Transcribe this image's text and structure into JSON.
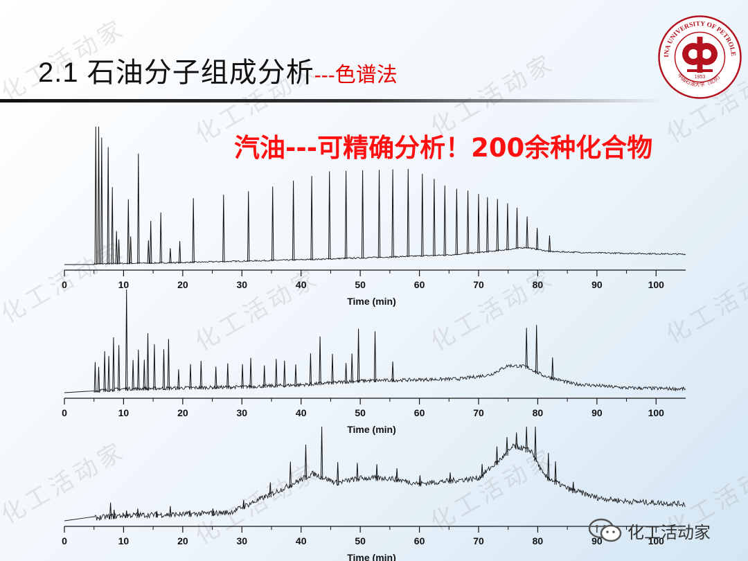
{
  "slide": {
    "title_main": "2.1 石油分子组成分析",
    "title_sub": "---色谱法",
    "headline": "汽油---可精确分析！200余种化合物"
  },
  "logo": {
    "ring_text": "CHINA UNIVERSITY OF PETROLEUM",
    "bottom_text": "中国石油大学（北京）",
    "year": "1953",
    "color": "#b3121e"
  },
  "watermark": "化工活动家",
  "wechat": {
    "label": "化工活动家",
    "icon": "wechat-icon"
  },
  "chart_data": [
    {
      "type": "line",
      "xlabel": "Time (min)",
      "xlim": [
        0,
        105
      ],
      "xticks": [
        0,
        10,
        20,
        30,
        40,
        50,
        60,
        70,
        80,
        90,
        100
      ],
      "baseline": [
        [
          0,
          0
        ],
        [
          5,
          0
        ],
        [
          20,
          1
        ],
        [
          40,
          3
        ],
        [
          55,
          5
        ],
        [
          65,
          6.5
        ],
        [
          72,
          9
        ],
        [
          78,
          12
        ],
        [
          82,
          9
        ],
        [
          90,
          8
        ],
        [
          105,
          7
        ]
      ],
      "peaks": [
        [
          5.3,
          100
        ],
        [
          5.8,
          100
        ],
        [
          6.3,
          92
        ],
        [
          7.4,
          85
        ],
        [
          8.1,
          56
        ],
        [
          8.8,
          24
        ],
        [
          9.2,
          18
        ],
        [
          10.8,
          47
        ],
        [
          11.2,
          20
        ],
        [
          12.5,
          80
        ],
        [
          14.2,
          17
        ],
        [
          14.6,
          31
        ],
        [
          16.3,
          37
        ],
        [
          17.9,
          11
        ],
        [
          19.5,
          16
        ],
        [
          21.8,
          47
        ],
        [
          26.9,
          49
        ],
        [
          31.1,
          51
        ],
        [
          35.2,
          54
        ],
        [
          38.7,
          58
        ],
        [
          41.8,
          61
        ],
        [
          44.8,
          64
        ],
        [
          47.6,
          64
        ],
        [
          50.4,
          64
        ],
        [
          53.2,
          64
        ],
        [
          55.5,
          64
        ],
        [
          58.1,
          64
        ],
        [
          60.5,
          60
        ],
        [
          62.5,
          56
        ],
        [
          64.3,
          51
        ],
        [
          66.3,
          48
        ],
        [
          68.2,
          46
        ],
        [
          70.0,
          43
        ],
        [
          71.5,
          40
        ],
        [
          73.2,
          38
        ],
        [
          74.9,
          34
        ],
        [
          76.5,
          30
        ],
        [
          78.2,
          23
        ],
        [
          79.9,
          16
        ],
        [
          82.0,
          12
        ]
      ],
      "noise": 2
    },
    {
      "type": "line",
      "xlabel": "Time (min)",
      "xlim": [
        0,
        105
      ],
      "xticks": [
        0,
        10,
        20,
        30,
        40,
        50,
        60,
        70,
        80,
        90,
        100
      ],
      "baseline": [
        [
          0,
          0
        ],
        [
          5,
          0
        ],
        [
          10,
          2
        ],
        [
          20,
          3
        ],
        [
          30,
          4
        ],
        [
          40,
          6
        ],
        [
          50,
          10
        ],
        [
          60,
          11
        ],
        [
          67,
          12
        ],
        [
          72,
          16
        ],
        [
          75,
          25
        ],
        [
          78,
          24
        ],
        [
          81,
          15
        ],
        [
          86,
          7
        ],
        [
          95,
          3
        ],
        [
          105,
          2
        ]
      ],
      "peaks": [
        [
          5.2,
          30
        ],
        [
          5.8,
          25
        ],
        [
          6.8,
          40
        ],
        [
          7.5,
          35
        ],
        [
          8.3,
          53
        ],
        [
          9.2,
          45
        ],
        [
          10.5,
          100
        ],
        [
          11.6,
          30
        ],
        [
          12.5,
          40
        ],
        [
          13.5,
          30
        ],
        [
          14.1,
          56
        ],
        [
          15.2,
          45
        ],
        [
          16.8,
          40
        ],
        [
          17.6,
          50
        ],
        [
          19.3,
          20
        ],
        [
          21.3,
          25
        ],
        [
          23.1,
          28
        ],
        [
          25.6,
          22
        ],
        [
          27.6,
          25
        ],
        [
          30.1,
          24
        ],
        [
          31.5,
          30
        ],
        [
          33.8,
          22
        ],
        [
          35.8,
          28
        ],
        [
          37.2,
          26
        ],
        [
          39.1,
          22
        ],
        [
          41.6,
          32
        ],
        [
          43.2,
          48
        ],
        [
          45.3,
          30
        ],
        [
          47.6,
          20
        ],
        [
          48.6,
          29
        ],
        [
          49.7,
          53
        ],
        [
          52.5,
          50
        ],
        [
          55.5,
          20
        ],
        [
          78.1,
          40
        ],
        [
          79.8,
          48
        ],
        [
          82.5,
          22
        ]
      ],
      "noise": 5
    },
    {
      "type": "line",
      "xlabel": "Time (min)",
      "xlim": [
        0,
        105
      ],
      "xticks": [
        0,
        10,
        20,
        30,
        40,
        50,
        60,
        70,
        80,
        90,
        100
      ],
      "baseline": [
        [
          0,
          0
        ],
        [
          5,
          0
        ],
        [
          10,
          3
        ],
        [
          20,
          4
        ],
        [
          28,
          6
        ],
        [
          33,
          20
        ],
        [
          38,
          35
        ],
        [
          42,
          48
        ],
        [
          46,
          38
        ],
        [
          50,
          43
        ],
        [
          55,
          43
        ],
        [
          60,
          37
        ],
        [
          65,
          40
        ],
        [
          70,
          43
        ],
        [
          74,
          65
        ],
        [
          76,
          78
        ],
        [
          79,
          72
        ],
        [
          81,
          46
        ],
        [
          85,
          32
        ],
        [
          90,
          22
        ],
        [
          95,
          18
        ],
        [
          105,
          15
        ]
      ],
      "peaks": [
        [
          7.8,
          18
        ],
        [
          8.4,
          10
        ],
        [
          10.5,
          8
        ],
        [
          12.4,
          10
        ],
        [
          15.6,
          7
        ],
        [
          17.9,
          12
        ],
        [
          21.2,
          7
        ],
        [
          25.1,
          8
        ],
        [
          30.3,
          10
        ],
        [
          34.8,
          16
        ],
        [
          38.2,
          28
        ],
        [
          40.8,
          38
        ],
        [
          43.5,
          92
        ],
        [
          46.2,
          25
        ],
        [
          49.5,
          20
        ],
        [
          52.8,
          18
        ],
        [
          56.2,
          15
        ],
        [
          60.1,
          12
        ],
        [
          65.2,
          12
        ],
        [
          70.6,
          15
        ],
        [
          73.1,
          20
        ],
        [
          74.8,
          20
        ],
        [
          76.4,
          18
        ],
        [
          78.1,
          130
        ],
        [
          79.6,
          114
        ],
        [
          81.8,
          30
        ],
        [
          83.0,
          25
        ],
        [
          86.0,
          12
        ]
      ],
      "noise": 8
    }
  ]
}
